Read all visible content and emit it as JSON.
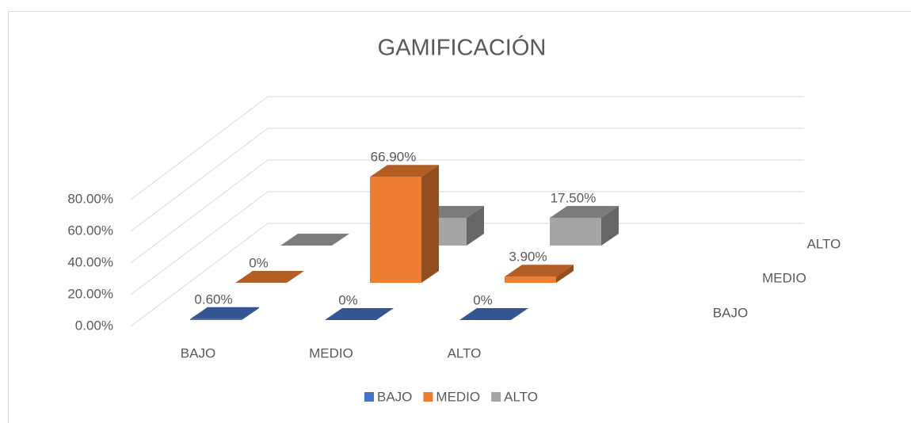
{
  "chart_data": {
    "type": "bar3d",
    "title": "GAMIFICACIÓN",
    "categories": [
      "BAJO",
      "MEDIO",
      "ALTO"
    ],
    "series": [
      {
        "name": "BAJO",
        "color": "#4472c4",
        "values": [
          0.6,
          0,
          0
        ],
        "value_labels": [
          "0.60%",
          "0%",
          "0%"
        ]
      },
      {
        "name": "MEDIO",
        "color": "#ed7d31",
        "values": [
          0,
          66.9,
          3.9
        ],
        "value_labels": [
          "0%",
          "66.90%",
          "3.90%"
        ]
      },
      {
        "name": "ALTO",
        "color": "#a5a5a5",
        "values": [
          0,
          17.5,
          17.5
        ],
        "value_labels": [
          null,
          null,
          "17.50%"
        ]
      }
    ],
    "ylim": [
      0,
      80
    ],
    "yticks": [
      {
        "value": 0,
        "label": "0.00%"
      },
      {
        "value": 20,
        "label": "20.00%"
      },
      {
        "value": 40,
        "label": "40.00%"
      },
      {
        "value": 60,
        "label": "60.00%"
      },
      {
        "value": 80,
        "label": "80.00%"
      }
    ],
    "grid": true,
    "legend": "bottom"
  }
}
